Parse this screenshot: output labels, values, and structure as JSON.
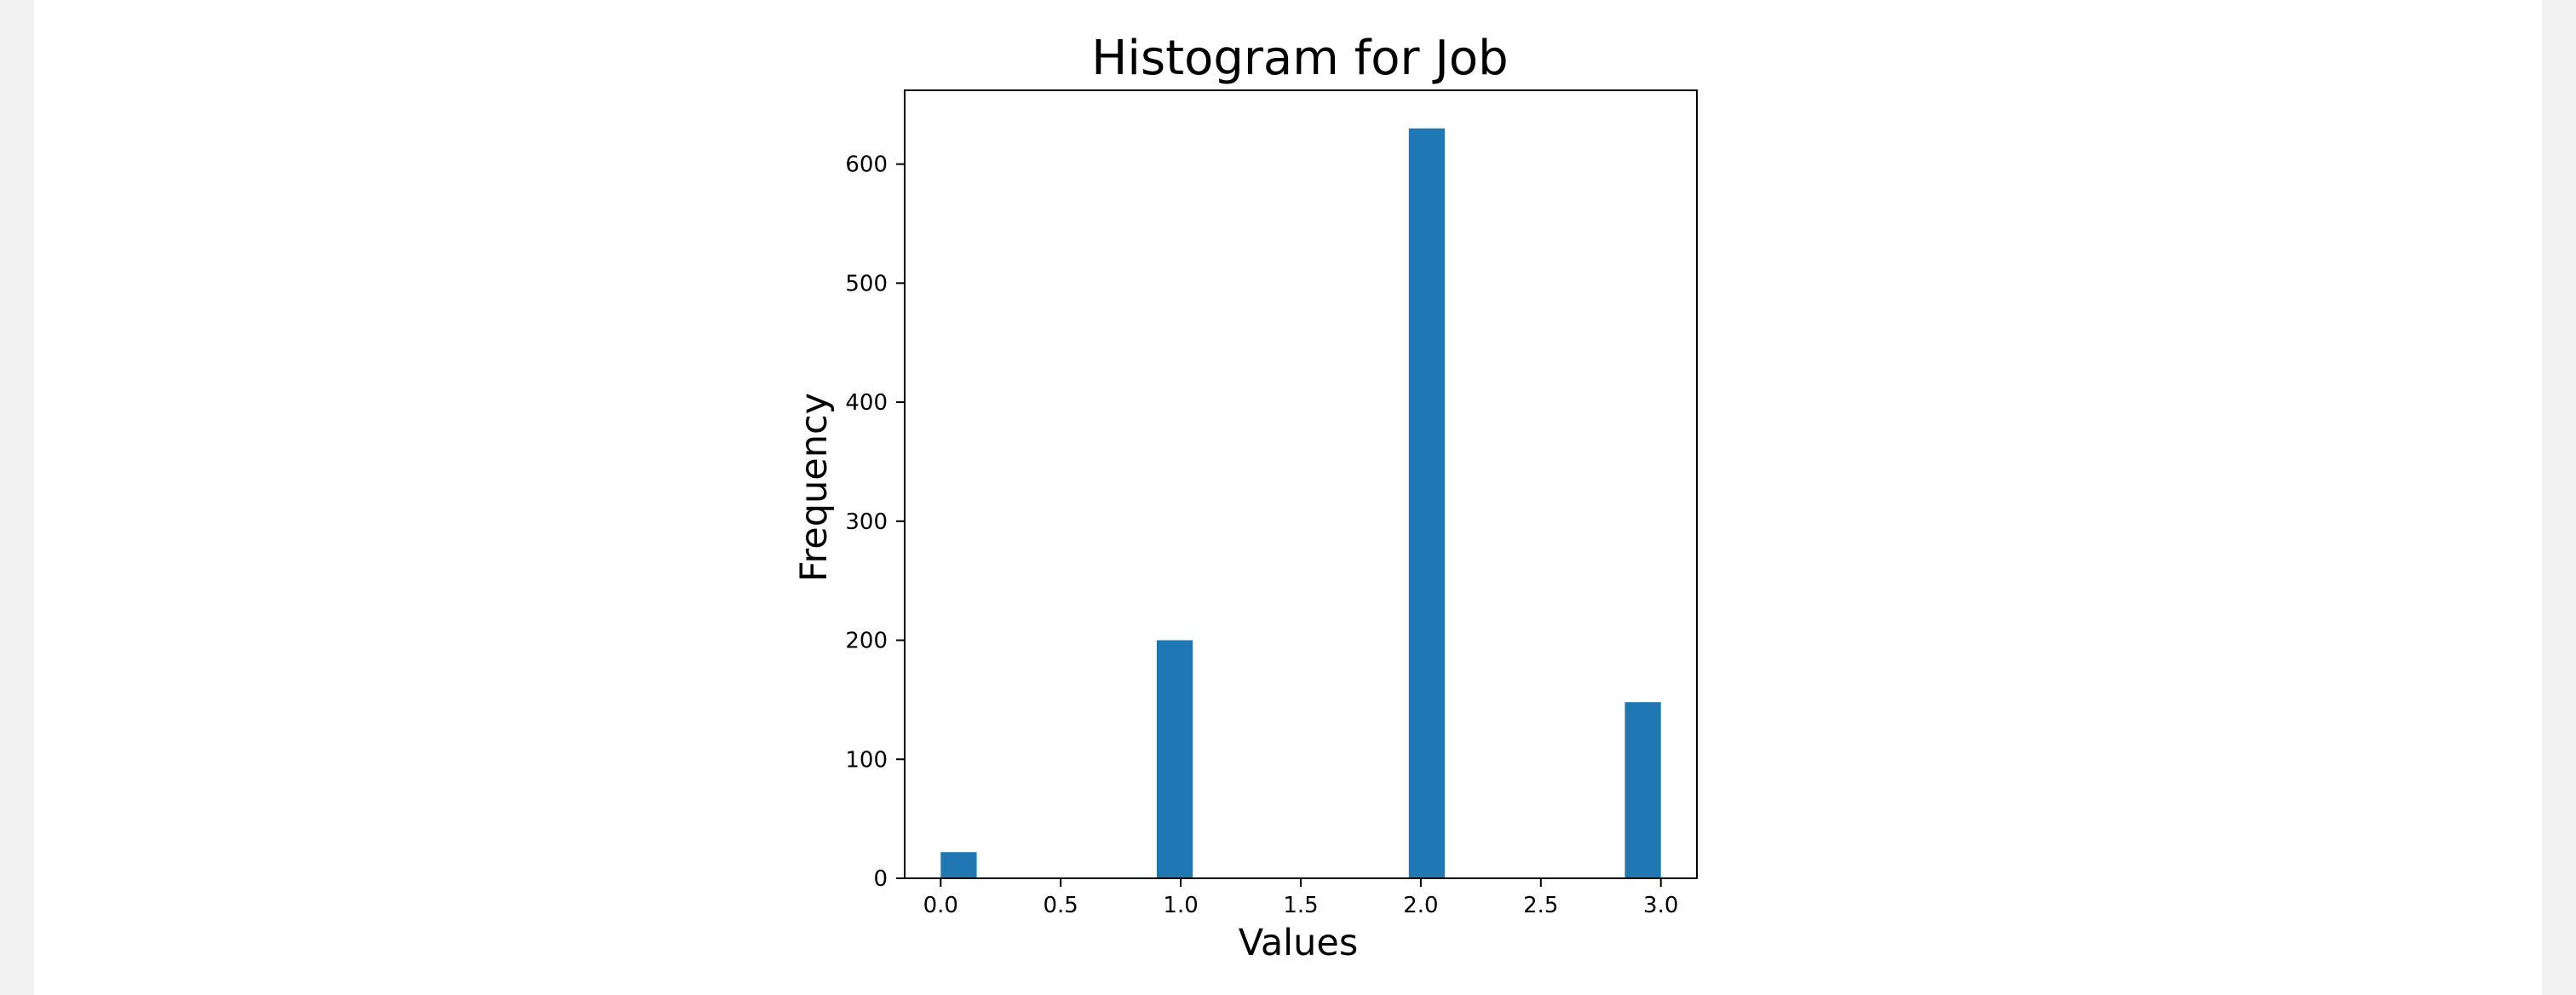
{
  "chart_data": {
    "type": "bar",
    "title": "Histogram for Job",
    "xlabel": "Values",
    "ylabel": "Frequency",
    "xlim": [
      -0.15,
      3.15
    ],
    "ylim": [
      0,
      662
    ],
    "xticks": [
      "0.0",
      "0.5",
      "1.0",
      "1.5",
      "2.0",
      "2.5",
      "3.0"
    ],
    "yticks": [
      "0",
      "100",
      "200",
      "300",
      "400",
      "500",
      "600"
    ],
    "bin_width": 0.15,
    "bars": [
      {
        "x_start": 0.0,
        "value": 22
      },
      {
        "x_start": 0.9,
        "value": 200
      },
      {
        "x_start": 1.95,
        "value": 630
      },
      {
        "x_start": 2.85,
        "value": 148
      }
    ],
    "bar_color": "#1f77b4",
    "grid": false,
    "legend": "none"
  }
}
